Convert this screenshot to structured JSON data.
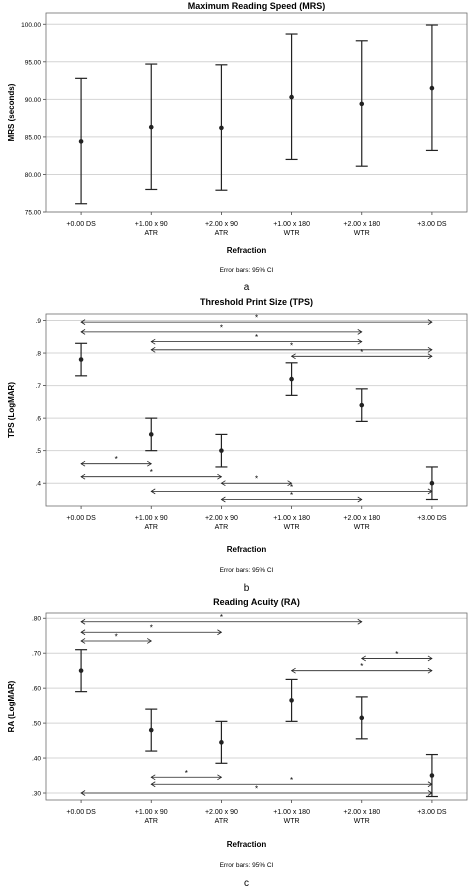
{
  "chart_data": [
    {
      "type": "errorbar",
      "title": "Maximum Reading Speed (MRS)",
      "ylabel": "MRS (seconds)",
      "xlabel": "Refraction",
      "note": "Error bars: 95% CI",
      "panel_label": "a",
      "ylim": [
        75.0,
        101.5
      ],
      "yticks": [
        "75.00",
        "80.00",
        "85.00",
        "90.00",
        "95.00",
        "100.00"
      ],
      "grid": true,
      "categories": [
        "+0.00 DS",
        "+1.00 x 90\nATR",
        "+2.00 x 90\nATR",
        "+1.00 x 180\nWTR",
        "+2.00 x 180\nWTR",
        "+3.00 DS"
      ],
      "means": [
        84.4,
        86.3,
        86.2,
        90.3,
        89.4,
        91.5
      ],
      "lower": [
        76.1,
        78.0,
        77.9,
        82.0,
        81.1,
        83.2
      ],
      "upper": [
        92.8,
        94.7,
        94.6,
        98.7,
        97.8,
        99.9
      ],
      "significance": []
    },
    {
      "type": "errorbar",
      "title": "Threshold Print Size (TPS)",
      "ylabel": "TPS (LogMAR)",
      "xlabel": "Refraction",
      "note": "Error bars: 95% CI",
      "panel_label": "b",
      "ylim": [
        0.33,
        0.92
      ],
      "yticks": [
        ".4",
        ".5",
        ".6",
        ".7",
        ".8",
        ".9"
      ],
      "grid": true,
      "categories": [
        "+0.00 DS",
        "+1.00 x 90\nATR",
        "+2.00 x 90\nATR",
        "+1.00 x 180\nWTR",
        "+2.00 x 180\nWTR",
        "+3.00 DS"
      ],
      "means": [
        0.78,
        0.55,
        0.5,
        0.72,
        0.64,
        0.4
      ],
      "lower": [
        0.73,
        0.5,
        0.45,
        0.67,
        0.59,
        0.35
      ],
      "upper": [
        0.83,
        0.6,
        0.55,
        0.77,
        0.69,
        0.45
      ],
      "significance": [
        {
          "from": 0,
          "to": 5,
          "y": 0.895,
          "label": "*"
        },
        {
          "from": 0,
          "to": 4,
          "y": 0.865,
          "label": "*"
        },
        {
          "from": 1,
          "to": 4,
          "y": 0.835,
          "label": "*"
        },
        {
          "from": 1,
          "to": 5,
          "y": 0.81,
          "label": "*"
        },
        {
          "from": 3,
          "to": 5,
          "y": 0.79,
          "label": "*"
        },
        {
          "from": 0,
          "to": 1,
          "y": 0.46,
          "label": "*"
        },
        {
          "from": 0,
          "to": 2,
          "y": 0.42,
          "label": "*"
        },
        {
          "from": 2,
          "to": 3,
          "y": 0.4,
          "label": "*"
        },
        {
          "from": 1,
          "to": 5,
          "y": 0.375,
          "label": "*"
        },
        {
          "from": 2,
          "to": 4,
          "y": 0.35,
          "label": "*"
        }
      ]
    },
    {
      "type": "errorbar",
      "title": "Reading Acuity (RA)",
      "ylabel": "RA (LogMAR)",
      "xlabel": "Refraction",
      "note": "Error bars: 95% CI",
      "panel_label": "c",
      "ylim": [
        0.28,
        0.815
      ],
      "yticks": [
        ".30",
        ".40",
        ".50",
        ".60",
        ".70",
        ".80"
      ],
      "grid": true,
      "categories": [
        "+0.00 DS",
        "+1.00 x 90\nATR",
        "+2.00 x 90\nATR",
        "+1.00 x 180\nWTR",
        "+2.00 x 180\nWTR",
        "+3.00 DS"
      ],
      "means": [
        0.65,
        0.48,
        0.445,
        0.565,
        0.515,
        0.35
      ],
      "lower": [
        0.59,
        0.42,
        0.385,
        0.505,
        0.455,
        0.29
      ],
      "upper": [
        0.71,
        0.54,
        0.505,
        0.625,
        0.575,
        0.41
      ],
      "significance": [
        {
          "from": 0,
          "to": 4,
          "y": 0.79,
          "label": "*"
        },
        {
          "from": 0,
          "to": 2,
          "y": 0.76,
          "label": "*"
        },
        {
          "from": 0,
          "to": 1,
          "y": 0.735,
          "label": "*"
        },
        {
          "from": 4,
          "to": 5,
          "y": 0.685,
          "label": "*"
        },
        {
          "from": 3,
          "to": 5,
          "y": 0.65,
          "label": "*"
        },
        {
          "from": 1,
          "to": 2,
          "y": 0.345,
          "label": "*"
        },
        {
          "from": 1,
          "to": 5,
          "y": 0.325,
          "label": "*"
        },
        {
          "from": 0,
          "to": 5,
          "y": 0.3,
          "label": "*"
        }
      ]
    }
  ]
}
